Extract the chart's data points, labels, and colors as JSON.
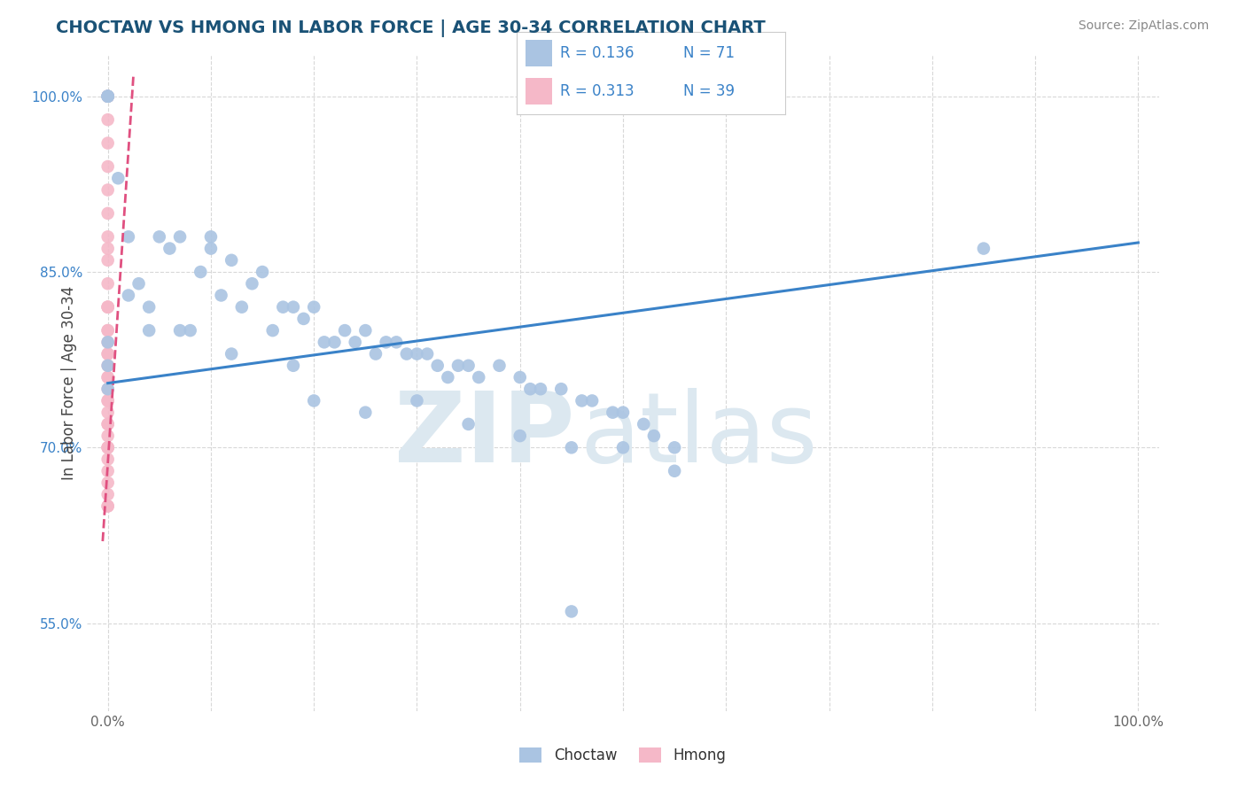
{
  "title": "CHOCTAW VS HMONG IN LABOR FORCE | AGE 30-34 CORRELATION CHART",
  "source_text": "Source: ZipAtlas.com",
  "ylabel": "In Labor Force | Age 30-34",
  "xlim": [
    -0.02,
    1.02
  ],
  "ylim": [
    0.475,
    1.035
  ],
  "xtick_positions": [
    0.0,
    0.1,
    0.2,
    0.3,
    0.4,
    0.5,
    0.6,
    0.7,
    0.8,
    0.9,
    1.0
  ],
  "xticklabels": [
    "0.0%",
    "",
    "",
    "",
    "",
    "",
    "",
    "",
    "",
    "",
    "100.0%"
  ],
  "ytick_positions": [
    0.55,
    0.7,
    0.85,
    1.0
  ],
  "yticklabels": [
    "55.0%",
    "70.0%",
    "85.0%",
    "100.0%"
  ],
  "legend_r_choctaw": "0.136",
  "legend_n_choctaw": "71",
  "legend_r_hmong": "0.313",
  "legend_n_hmong": "39",
  "choctaw_color": "#aac4e2",
  "hmong_color": "#f5b8c8",
  "trendline_choctaw_color": "#3a82c8",
  "trendline_hmong_color": "#e05080",
  "r_n_color": "#3a82c8",
  "watermark_zip": "ZIP",
  "watermark_atlas": "atlas",
  "watermark_color": "#dce8f0",
  "background_color": "#ffffff",
  "grid_color": "#d8d8d8",
  "ylabel_color": "#444444",
  "ytick_color": "#3a82c8",
  "xtick_color": "#666666",
  "title_color": "#1a5276",
  "source_color": "#888888",
  "legend_border_color": "#cccccc",
  "choctaw_x": [
    0.0,
    0.0,
    0.0,
    0.0,
    0.01,
    0.02,
    0.03,
    0.04,
    0.05,
    0.06,
    0.07,
    0.08,
    0.09,
    0.1,
    0.1,
    0.11,
    0.12,
    0.13,
    0.14,
    0.15,
    0.16,
    0.17,
    0.18,
    0.19,
    0.2,
    0.21,
    0.22,
    0.23,
    0.24,
    0.25,
    0.26,
    0.27,
    0.28,
    0.29,
    0.3,
    0.31,
    0.32,
    0.33,
    0.34,
    0.35,
    0.36,
    0.38,
    0.4,
    0.41,
    0.42,
    0.44,
    0.46,
    0.47,
    0.49,
    0.5,
    0.52,
    0.53,
    0.55,
    0.2,
    0.25,
    0.3,
    0.35,
    0.4,
    0.45,
    0.5,
    0.55,
    0.85,
    0.0,
    0.0,
    0.0,
    0.02,
    0.04,
    0.07,
    0.12,
    0.18,
    0.45
  ],
  "choctaw_y": [
    1.0,
    1.0,
    1.0,
    1.0,
    0.93,
    0.88,
    0.84,
    0.82,
    0.88,
    0.87,
    0.88,
    0.8,
    0.85,
    0.88,
    0.87,
    0.83,
    0.86,
    0.82,
    0.84,
    0.85,
    0.8,
    0.82,
    0.82,
    0.81,
    0.82,
    0.79,
    0.79,
    0.8,
    0.79,
    0.8,
    0.78,
    0.79,
    0.79,
    0.78,
    0.78,
    0.78,
    0.77,
    0.76,
    0.77,
    0.77,
    0.76,
    0.77,
    0.76,
    0.75,
    0.75,
    0.75,
    0.74,
    0.74,
    0.73,
    0.73,
    0.72,
    0.71,
    0.7,
    0.74,
    0.73,
    0.74,
    0.72,
    0.71,
    0.7,
    0.7,
    0.68,
    0.87,
    0.79,
    0.77,
    0.75,
    0.83,
    0.8,
    0.8,
    0.78,
    0.77,
    0.56
  ],
  "hmong_x": [
    0.0,
    0.0,
    0.0,
    0.0,
    0.0,
    0.0,
    0.0,
    0.0,
    0.0,
    0.0,
    0.0,
    0.0,
    0.0,
    0.0,
    0.0,
    0.0,
    0.0,
    0.0,
    0.0,
    0.0,
    0.0,
    0.0,
    0.0,
    0.0,
    0.0,
    0.0,
    0.0,
    0.0,
    0.0,
    0.0,
    0.0,
    0.0,
    0.0,
    0.0,
    0.0,
    0.0,
    0.0,
    0.0,
    0.0
  ],
  "hmong_y": [
    1.0,
    1.0,
    1.0,
    0.98,
    0.96,
    0.94,
    0.92,
    0.9,
    0.88,
    0.87,
    0.86,
    0.84,
    0.82,
    0.82,
    0.8,
    0.79,
    0.78,
    0.77,
    0.76,
    0.75,
    0.74,
    0.73,
    0.72,
    0.71,
    0.7,
    0.7,
    0.69,
    0.68,
    0.67,
    0.66,
    0.65,
    0.65,
    0.82,
    0.8,
    0.78,
    0.76,
    0.74,
    0.72,
    0.7
  ],
  "trend_choctaw_x0": 0.0,
  "trend_choctaw_x1": 1.0,
  "trend_choctaw_y0": 0.755,
  "trend_choctaw_y1": 0.875,
  "trend_hmong_x0": -0.005,
  "trend_hmong_x1": 0.025,
  "trend_hmong_y0": 0.62,
  "trend_hmong_y1": 1.02
}
